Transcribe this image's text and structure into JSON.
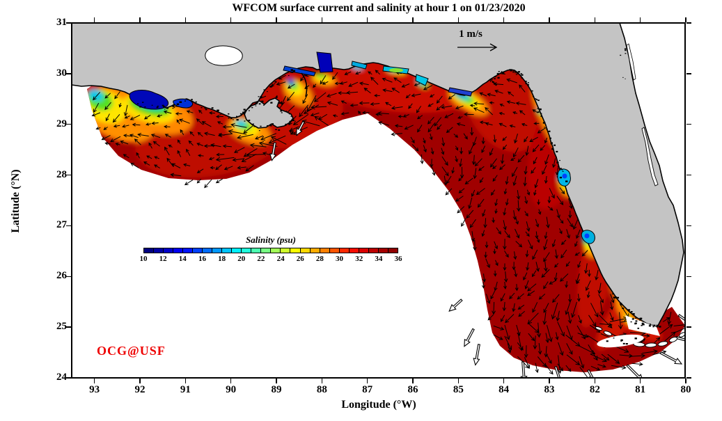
{
  "figure": {
    "title": "WFCOM surface current and salinity at hour 1 on 01/23/2020",
    "watermark": "OCG@USF",
    "vector_scale_label": "1 m/s"
  },
  "axes": {
    "xlabel": "Longitude (°W)",
    "ylabel": "Latitude (°N)",
    "x_ticks": [
      93,
      92,
      91,
      90,
      89,
      88,
      87,
      86,
      85,
      84,
      83,
      82,
      81,
      80
    ],
    "y_ticks": [
      31,
      30,
      29,
      28,
      27,
      26,
      25,
      24
    ],
    "x_range_deg_w": [
      93.5,
      80
    ],
    "y_range_deg_n": [
      24,
      31
    ]
  },
  "colorbar": {
    "label": "Salinity (psu)",
    "ticks": [
      10,
      12,
      14,
      16,
      18,
      20,
      22,
      24,
      26,
      28,
      30,
      32,
      34,
      36
    ],
    "min": 10,
    "max": 36,
    "segment_colors": [
      "#000080",
      "#0000A4",
      "#0000C8",
      "#0000F0",
      "#0014FF",
      "#0040FF",
      "#006CFF",
      "#0098FF",
      "#00C4FF",
      "#00F0FF",
      "#1FFFDC",
      "#4BFFB0",
      "#77FF84",
      "#A3FF58",
      "#CFFF2C",
      "#FBFF00",
      "#FFD800",
      "#FFAC00",
      "#FF8000",
      "#FF5400",
      "#FF2800",
      "#F60B00",
      "#D90000",
      "#BC0000",
      "#A40000",
      "#8F0000"
    ]
  },
  "colors": {
    "background": "#FFFFFF",
    "land": "#C4C4C4",
    "coastline": "#000000",
    "sea_outside_domain": "#FFFFFF",
    "offshore_salinity_fill": "#A00000",
    "vectors": "#000000",
    "watermark_text": "#EE0000"
  },
  "chart_data": {
    "type": "map",
    "title": "WFCOM surface current and salinity at hour 1 on 01/23/2020",
    "x_axis": {
      "label": "Longitude (°W)",
      "ticks": [
        93,
        92,
        91,
        90,
        89,
        88,
        87,
        86,
        85,
        84,
        83,
        82,
        81,
        80
      ],
      "range": [
        93.5,
        80
      ]
    },
    "y_axis": {
      "label": "Latitude (°N)",
      "ticks": [
        31,
        30,
        29,
        28,
        27,
        26,
        25,
        24
      ],
      "range": [
        24,
        31
      ]
    },
    "color_scale": {
      "label": "Salinity (psu)",
      "range": [
        10,
        36
      ],
      "tick_step": 2,
      "colormap": "jet"
    },
    "vector_key": {
      "label": "1 m/s"
    },
    "fields": {
      "fill": "sea surface salinity (psu)",
      "vectors": "surface current velocity"
    },
    "observations": {
      "offshore_salinity_psu": 35.5,
      "low_salinity_plumes": [
        {
          "lon_w": 92.1,
          "lat_n": 29.4,
          "approx_psu": 16
        },
        {
          "lon_w": 91.6,
          "lat_n": 29.5,
          "approx_psu": 11
        },
        {
          "lon_w": 89.6,
          "lat_n": 29.2,
          "approx_psu": 22
        },
        {
          "lon_w": 89.3,
          "lat_n": 30.2,
          "approx_psu": 12
        },
        {
          "lon_w": 88.0,
          "lat_n": 30.4,
          "approx_psu": 11
        },
        {
          "lon_w": 86.9,
          "lat_n": 30.35,
          "approx_psu": 20
        },
        {
          "lon_w": 85.1,
          "lat_n": 29.6,
          "approx_psu": 12
        },
        {
          "lon_w": 83.1,
          "lat_n": 29.25,
          "approx_psu": 20
        },
        {
          "lon_w": 82.7,
          "lat_n": 27.6,
          "approx_psu": 18
        },
        {
          "lon_w": 82.1,
          "lat_n": 26.75,
          "approx_psu": 14
        }
      ]
    }
  }
}
